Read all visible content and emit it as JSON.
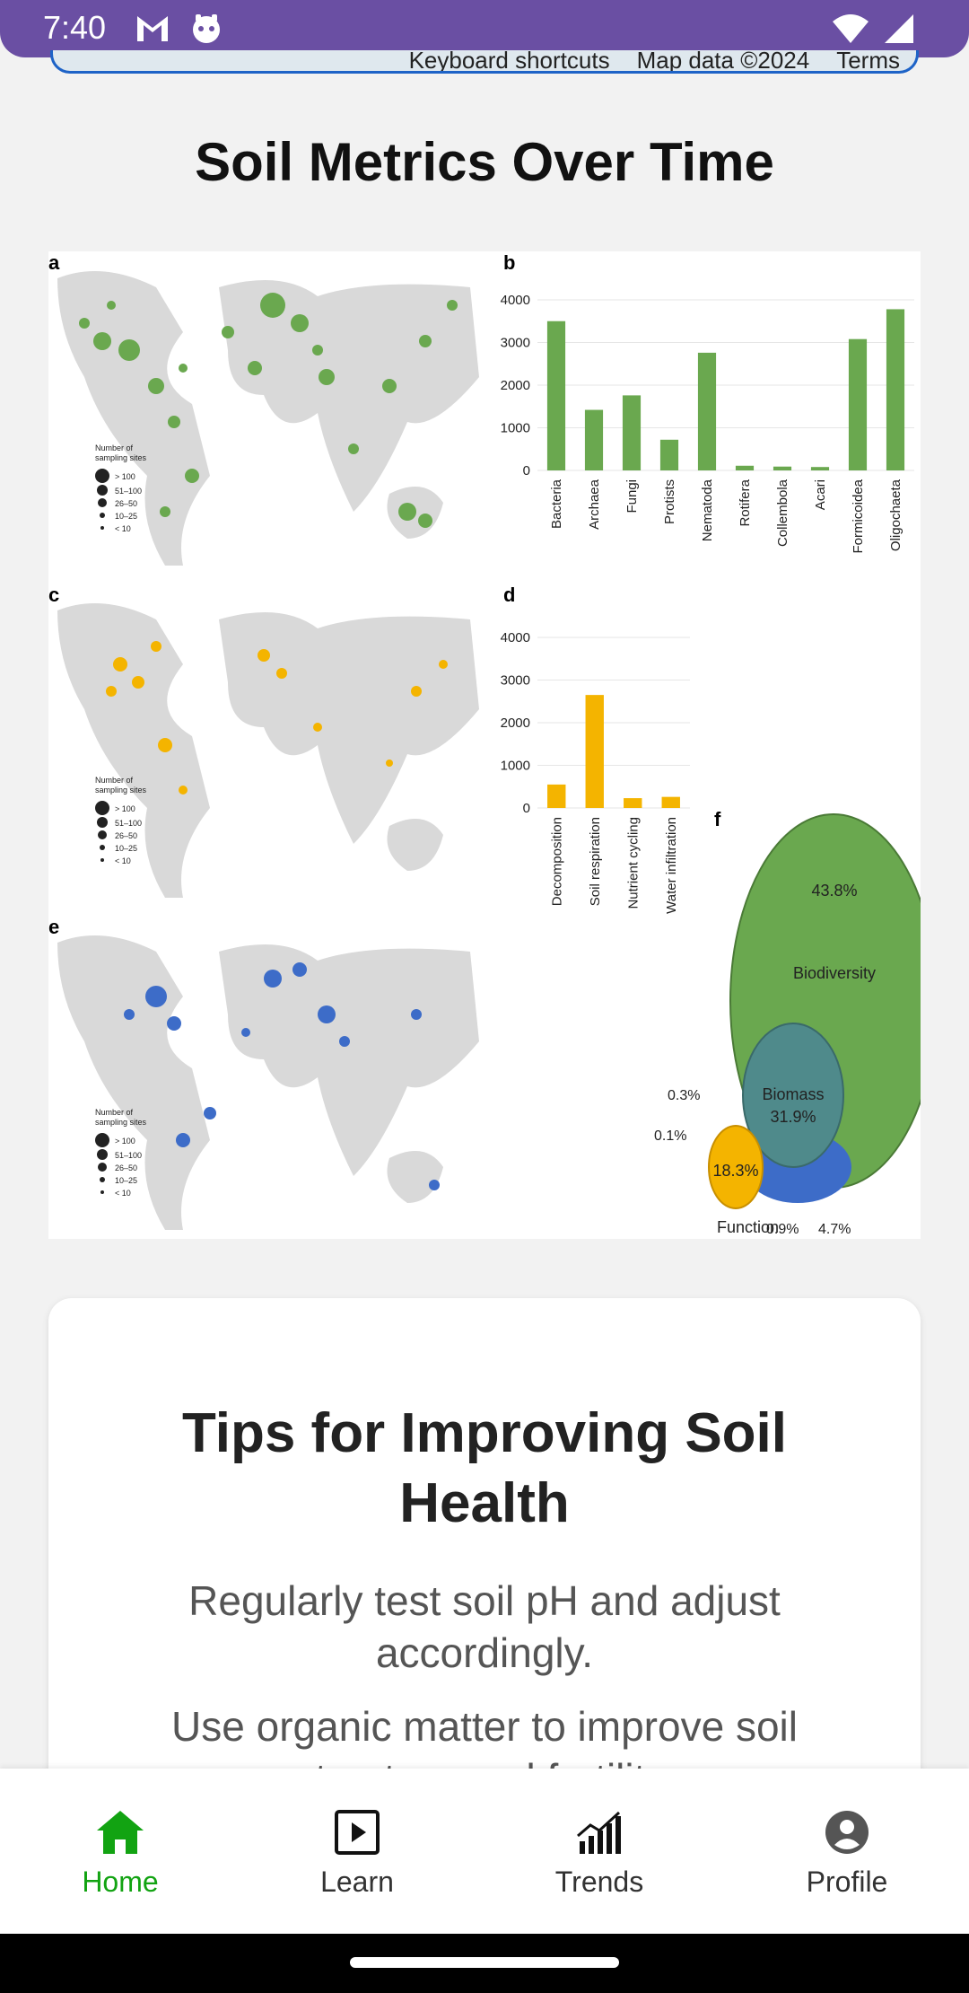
{
  "status_bar": {
    "time": "7:40",
    "left_icons": [
      "gmail-icon",
      "app-face-icon"
    ],
    "right_icons": [
      "wifi-icon",
      "signal-icon"
    ]
  },
  "map_strip": {
    "keyboard_shortcuts": "Keyboard shortcuts",
    "map_data": "Map data ©2024",
    "terms": "Terms"
  },
  "main": {
    "section_title": "Soil Metrics Over Time"
  },
  "figure": {
    "panel_labels": [
      "a",
      "b",
      "c",
      "d",
      "e",
      "f"
    ],
    "map_legend": {
      "title_line1": "Number of",
      "title_line2": "sampling sites",
      "items": [
        "> 100",
        "51–100",
        "26–50",
        "10–25",
        "< 10"
      ]
    },
    "colors": {
      "green": "#6aa84f",
      "orange": "#f4b400",
      "blue": "#3d6cc8",
      "land": "#d9d9d9"
    },
    "chart_data": [
      {
        "type": "bar",
        "panel": "b",
        "categories": [
          "Bacteria",
          "Archaea",
          "Fungi",
          "Protists",
          "Nematoda",
          "Rotifera",
          "Collembola",
          "Acari",
          "Formicoidea",
          "Oligochaeta"
        ],
        "values": [
          3500,
          1420,
          1760,
          720,
          2760,
          110,
          90,
          80,
          3080,
          3780
        ],
        "yticks": [
          "0",
          "1000",
          "2000",
          "3000",
          "4000"
        ],
        "ylim": [
          0,
          4000
        ],
        "color": "#6aa84f"
      },
      {
        "type": "bar",
        "panel": "d",
        "categories": [
          "Decomposition",
          "Soil respiration",
          "Nutrient cycling",
          "Water infiltration"
        ],
        "values": [
          550,
          2650,
          230,
          260
        ],
        "yticks": [
          "0",
          "1000",
          "2000",
          "3000",
          "4000"
        ],
        "ylim": [
          0,
          4000
        ],
        "color": "#f4b400"
      },
      {
        "type": "venn",
        "panel": "f",
        "sets": [
          {
            "name": "Biodiversity",
            "value": "43.8%",
            "color": "#6aa84f"
          },
          {
            "name": "Biomass",
            "value": "31.9%",
            "color": "#4f7f8f"
          },
          {
            "name": "Function",
            "value": "18.3%",
            "color": "#f4b400"
          }
        ],
        "overlap_labels": [
          "0.3%",
          "0.1%",
          "0.9%",
          "4.7%"
        ]
      }
    ]
  },
  "tips": {
    "title": "Tips for Improving Soil Health",
    "items": [
      "Regularly test soil pH and adjust accordingly.",
      "Use organic matter to improve soil structure and fertility."
    ]
  },
  "bottom_nav": {
    "items": [
      {
        "label": "Home",
        "icon": "home-icon",
        "active": true
      },
      {
        "label": "Learn",
        "icon": "play-icon",
        "active": false
      },
      {
        "label": "Trends",
        "icon": "trends-icon",
        "active": false
      },
      {
        "label": "Profile",
        "icon": "profile-icon",
        "active": false
      }
    ],
    "active_color": "#12a312"
  }
}
